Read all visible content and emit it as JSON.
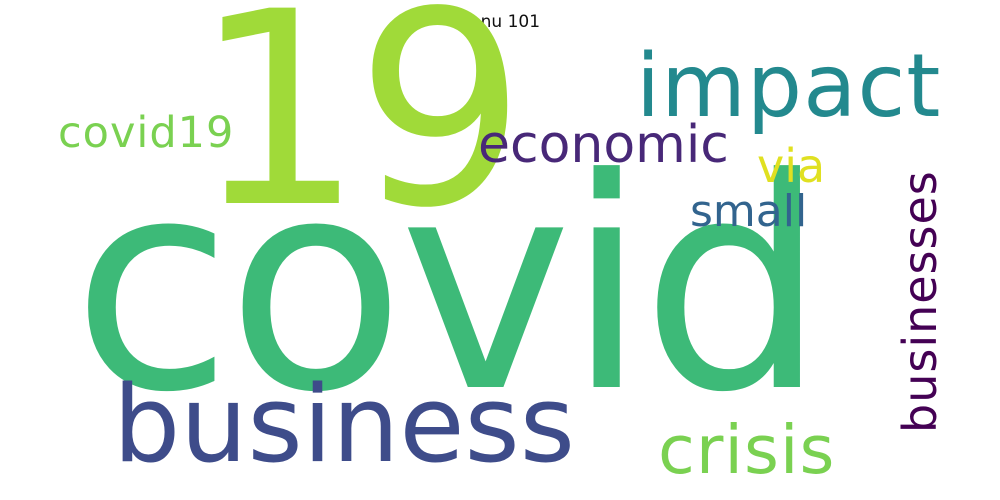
{
  "title": "Konu 101",
  "words": [
    {
      "key": "covid",
      "text": "covid",
      "color": "#3dba78"
    },
    {
      "key": "n19",
      "text": "19",
      "color": "#a0da39"
    },
    {
      "key": "business",
      "text": "business",
      "color": "#3e4c8a"
    },
    {
      "key": "impact",
      "text": "impact",
      "color": "#23898e"
    },
    {
      "key": "economic",
      "text": "economic",
      "color": "#482878"
    },
    {
      "key": "covid19",
      "text": "covid19",
      "color": "#7ad151"
    },
    {
      "key": "via",
      "text": "via",
      "color": "#e0e021"
    },
    {
      "key": "small",
      "text": "small",
      "color": "#32648e"
    },
    {
      "key": "crisis",
      "text": "crisis",
      "color": "#7ad151"
    },
    {
      "key": "businesses",
      "text": "businesses",
      "color": "#440154",
      "orientation": "vertical"
    }
  ]
}
